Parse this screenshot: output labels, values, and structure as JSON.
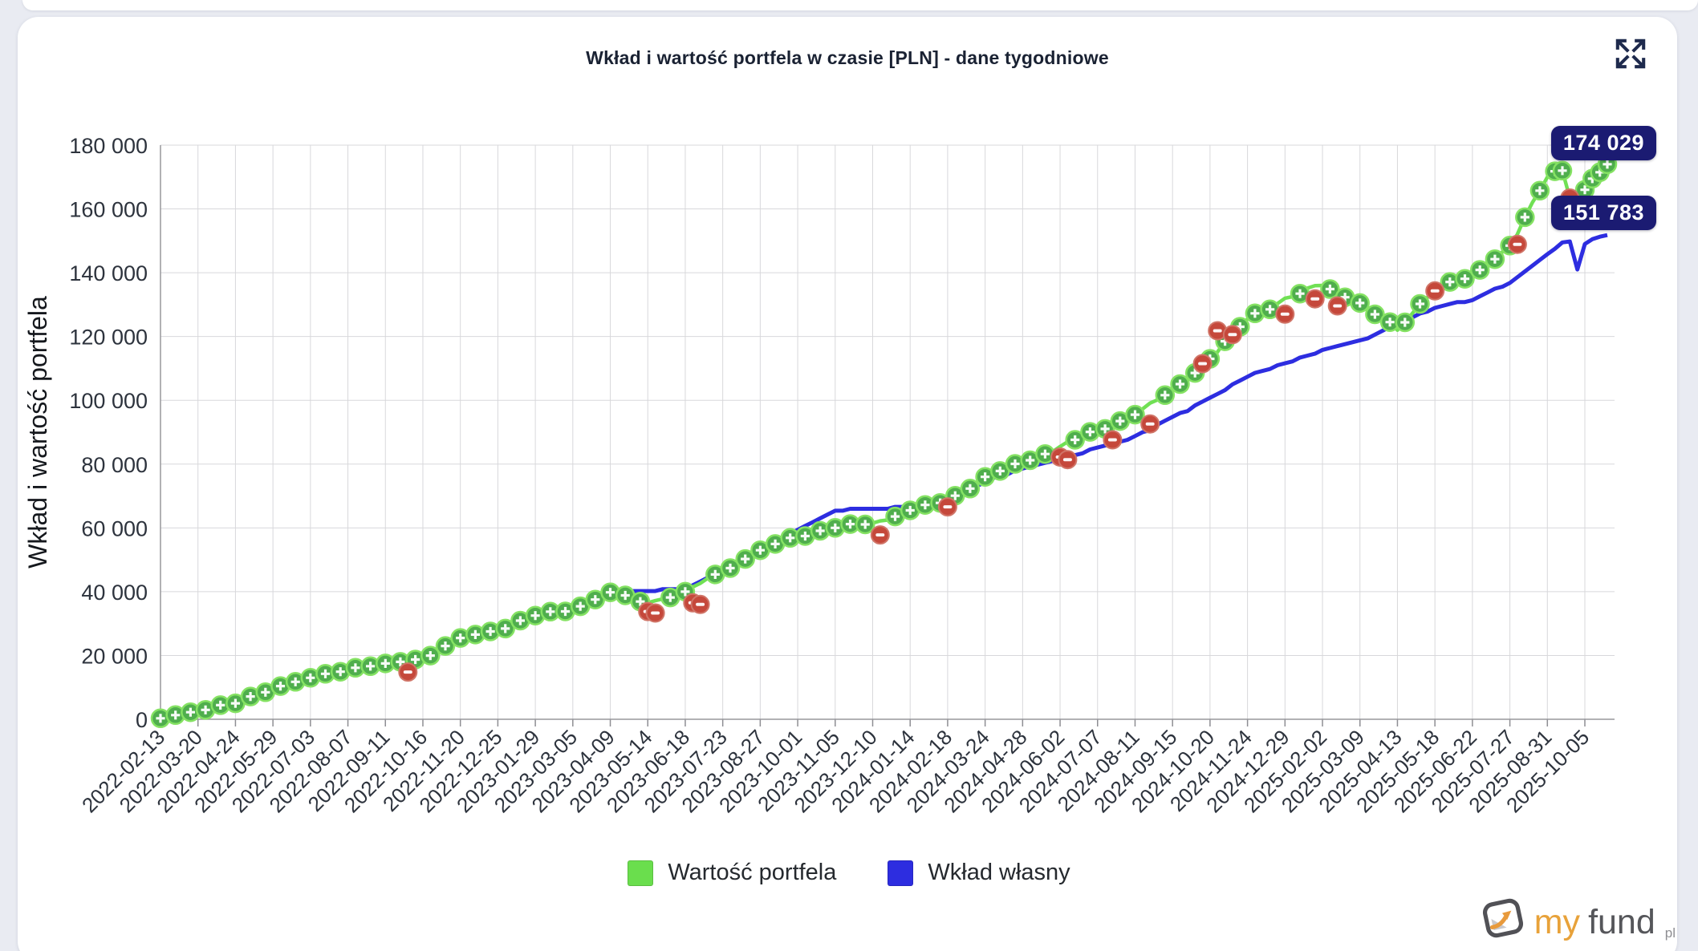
{
  "header": {
    "title": "Wkład i wartość portfela w czasie [PLN] - dane tygodniowe"
  },
  "page": {
    "background": "#e9ebf2",
    "card_background": "#ffffff",
    "badge_background": "#1b1b72"
  },
  "icons": {
    "fullscreen": "expand-arrows-icon",
    "fullscreen_color": "#1e2a4d"
  },
  "chart_data": {
    "type": "line",
    "title": "Wkład i wartość portfela w czasie [PLN] - dane tygodniowe",
    "xlabel": "",
    "ylabel": "Wkład i wartość portfela",
    "ylim": [
      0,
      180000
    ],
    "ytick_step": 20000,
    "ytick_labels": [
      "0",
      "20 000",
      "40 000",
      "60 000",
      "80 000",
      "100 000",
      "120 000",
      "140 000",
      "160 000",
      "180 000"
    ],
    "grid": true,
    "weeks_per_tick": 5,
    "x_tick_dates": [
      "2022-02-13",
      "2022-03-20",
      "2022-04-24",
      "2022-05-29",
      "2022-07-03",
      "2022-08-07",
      "2022-09-11",
      "2022-10-16",
      "2022-11-20",
      "2022-12-25",
      "2023-01-29",
      "2023-03-05",
      "2023-04-09",
      "2023-05-14",
      "2023-06-18",
      "2023-07-23",
      "2023-08-27",
      "2023-10-01",
      "2023-11-05",
      "2023-12-10",
      "2024-01-14",
      "2024-02-18",
      "2024-03-24",
      "2024-04-28",
      "2024-06-02",
      "2024-07-07",
      "2024-08-11",
      "2024-09-15",
      "2024-10-20",
      "2024-11-24",
      "2024-12-29",
      "2025-02-02",
      "2025-03-09",
      "2025-04-13",
      "2025-05-18",
      "2025-06-22",
      "2025-07-27",
      "2025-08-31",
      "2025-10-05"
    ],
    "series": [
      {
        "name": "Wartość portfela",
        "color": "#70e054",
        "marker": "plus-circle",
        "marker_fill": "#4fae4d",
        "marker_ring": "#85e263",
        "wiggle": true,
        "values_at_ticks": [
          300,
          2800,
          5000,
          9800,
          13000,
          15800,
          17500,
          19000,
          25500,
          28000,
          32500,
          34500,
          39800,
          36500,
          40000,
          46500,
          53000,
          57500,
          60000,
          61500,
          65500,
          68500,
          76000,
          80500,
          85500,
          90500,
          95500,
          103000,
          113000,
          125500,
          132000,
          136000,
          130500,
          122000,
          135500,
          138500,
          148500,
          170000,
          166000
        ],
        "extra_points": [
          [
            186,
            171800
          ],
          [
            187,
            172000
          ],
          [
            188,
            163400
          ],
          [
            189,
            157600
          ],
          [
            190,
            166000
          ],
          [
            191,
            169500
          ],
          [
            192,
            171500
          ],
          [
            193,
            174029
          ]
        ],
        "final_week": 193,
        "final_value": 174029
      },
      {
        "name": "Wkład własny",
        "color": "#2d2de0",
        "marker": "none",
        "quantize": true,
        "values_at_ticks": [
          300,
          2800,
          4800,
          9500,
          12800,
          15500,
          17200,
          19500,
          24500,
          27500,
          31500,
          34000,
          40000,
          40300,
          40800,
          47000,
          52500,
          59500,
          65500,
          66000,
          66500,
          68000,
          74500,
          78500,
          81500,
          85000,
          88500,
          94500,
          100500,
          107500,
          111500,
          115500,
          118500,
          124000,
          129000,
          131500,
          137000,
          146000,
          149000
        ],
        "extra_points": [
          [
            186,
            147500
          ],
          [
            187,
            149500
          ],
          [
            188,
            149800
          ],
          [
            189,
            141000
          ],
          [
            190,
            149000
          ],
          [
            191,
            150500
          ],
          [
            192,
            151300
          ],
          [
            193,
            151783
          ]
        ],
        "final_week": 193,
        "final_value": 151783
      }
    ],
    "loss_markers": {
      "color": "#c5483b",
      "glyph": "minus",
      "points": [
        {
          "week": 33,
          "value": 14800
        },
        {
          "week": 65,
          "value": 33800
        },
        {
          "week": 66,
          "value": 33300
        },
        {
          "week": 71,
          "value": 36500
        },
        {
          "week": 72,
          "value": 36000
        },
        {
          "week": 96,
          "value": 57800
        },
        {
          "week": 105,
          "value": 66600
        },
        {
          "week": 120,
          "value": 82200
        },
        {
          "week": 121,
          "value": 81400
        },
        {
          "week": 127,
          "value": 87600
        },
        {
          "week": 132,
          "value": 92600
        },
        {
          "week": 139,
          "value": 111500
        },
        {
          "week": 141,
          "value": 121800
        },
        {
          "week": 143,
          "value": 120600
        },
        {
          "week": 150,
          "value": 127000
        },
        {
          "week": 154,
          "value": 131800
        },
        {
          "week": 157,
          "value": 129600
        },
        {
          "week": 170,
          "value": 134300
        },
        {
          "week": 181,
          "value": 148900
        },
        {
          "week": 188,
          "value": 163400
        },
        {
          "week": 189,
          "value": 157600
        }
      ]
    },
    "end_labels": [
      {
        "series": "Wartość portfela",
        "text": "174 029",
        "value": 174029
      },
      {
        "series": "Wkład własny",
        "text": "151 783",
        "value": 151783
      }
    ],
    "legend": {
      "position": "bottom",
      "items": [
        {
          "label": "Wartość portfela",
          "color": "#6ade4d"
        },
        {
          "label": "Wkład własny",
          "color": "#2d2de0"
        }
      ]
    }
  },
  "branding": {
    "logo_my": "my",
    "logo_fund": "fund",
    "logo_tld": "pl"
  }
}
